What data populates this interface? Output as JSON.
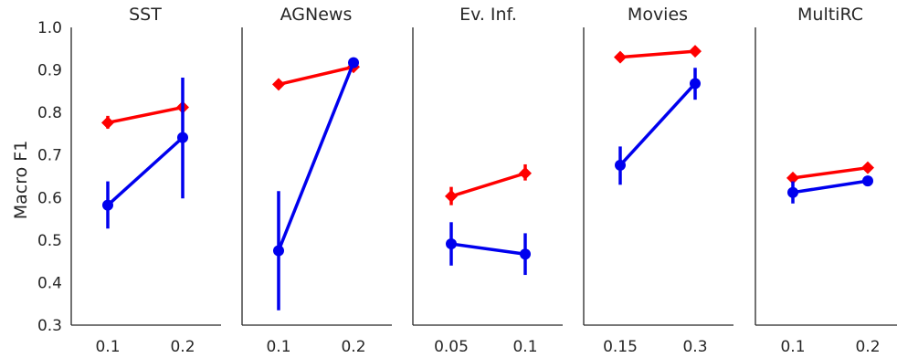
{
  "chart_data": {
    "type": "line",
    "ylabel": "Macro F1",
    "ylim": [
      0.3,
      1.0
    ],
    "yticks": [
      "0.3",
      "0.4",
      "0.5",
      "0.6",
      "0.7",
      "0.8",
      "0.9",
      "1.0"
    ],
    "colors": {
      "red_series": "#ff0000",
      "blue_series": "#0000ee"
    },
    "grid": false,
    "panels": [
      {
        "title": "SST",
        "categories": [
          "0.1",
          "0.2"
        ],
        "series": [
          {
            "color": "red",
            "marker": "diamond",
            "values": [
              0.776,
              0.812
            ],
            "err_low": [
              0.762,
              0.8
            ],
            "err_high": [
              0.792,
              0.822
            ]
          },
          {
            "color": "blue",
            "marker": "circle",
            "values": [
              0.582,
              0.741
            ],
            "err_low": [
              0.527,
              0.598
            ],
            "err_high": [
              0.638,
              0.882
            ]
          }
        ]
      },
      {
        "title": "AGNews",
        "categories": [
          "0.1",
          "0.2"
        ],
        "series": [
          {
            "color": "red",
            "marker": "diamond",
            "values": [
              0.866,
              0.907
            ],
            "err_low": [
              0.862,
              0.903
            ],
            "err_high": [
              0.87,
              0.911
            ]
          },
          {
            "color": "blue",
            "marker": "circle",
            "values": [
              0.475,
              0.917
            ],
            "err_low": [
              0.335,
              0.912
            ],
            "err_high": [
              0.615,
              0.922
            ]
          }
        ]
      },
      {
        "title": "Ev. Inf.",
        "categories": [
          "0.05",
          "0.1"
        ],
        "series": [
          {
            "color": "red",
            "marker": "diamond",
            "values": [
              0.603,
              0.657
            ],
            "err_low": [
              0.582,
              0.64
            ],
            "err_high": [
              0.625,
              0.678
            ]
          },
          {
            "color": "blue",
            "marker": "circle",
            "values": [
              0.491,
              0.467
            ],
            "err_low": [
              0.44,
              0.418
            ],
            "err_high": [
              0.542,
              0.516
            ]
          }
        ]
      },
      {
        "title": "Movies",
        "categories": [
          "0.15",
          "0.3"
        ],
        "series": [
          {
            "color": "red",
            "marker": "diamond",
            "values": [
              0.93,
              0.944
            ],
            "err_low": [
              0.926,
              0.94
            ],
            "err_high": [
              0.934,
              0.948
            ]
          },
          {
            "color": "blue",
            "marker": "circle",
            "values": [
              0.676,
              0.868
            ],
            "err_low": [
              0.63,
              0.83
            ],
            "err_high": [
              0.72,
              0.905
            ]
          }
        ]
      },
      {
        "title": "MultiRC",
        "categories": [
          "0.1",
          "0.2"
        ],
        "series": [
          {
            "color": "red",
            "marker": "diamond",
            "values": [
              0.646,
              0.67
            ],
            "err_low": [
              0.642,
              0.666
            ],
            "err_high": [
              0.65,
              0.674
            ]
          },
          {
            "color": "blue",
            "marker": "circle",
            "values": [
              0.612,
              0.639
            ],
            "err_low": [
              0.586,
              0.628
            ],
            "err_high": [
              0.638,
              0.651
            ]
          }
        ]
      }
    ]
  }
}
